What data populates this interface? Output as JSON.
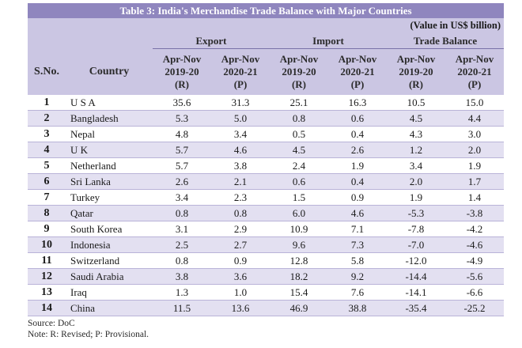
{
  "title": "Table 3: India's Merchandise Trade Balance with Major Countries",
  "units": "(Value in US$ billion)",
  "headers": {
    "sno": "S.No.",
    "country": "Country",
    "groups": [
      "Export",
      "Import",
      "Trade Balance"
    ],
    "columns": [
      {
        "line1": "Apr-Nov",
        "line2": "2019-20",
        "line3": "(R)"
      },
      {
        "line1": "Apr-Nov",
        "line2": "2020-21",
        "line3": "(P)"
      },
      {
        "line1": "Apr-Nov",
        "line2": "2019-20",
        "line3": "(R)"
      },
      {
        "line1": "Apr-Nov",
        "line2": "2020-21",
        "line3": "(P)"
      },
      {
        "line1": "Apr-Nov",
        "line2": "2019-20",
        "line3": "(R)"
      },
      {
        "line1": "Apr-Nov",
        "line2": "2020-21",
        "line3": "(P)"
      }
    ]
  },
  "rows": [
    {
      "sno": "1",
      "country": "U S A",
      "values": [
        "35.6",
        "31.3",
        "25.1",
        "16.3",
        "10.5",
        "15.0"
      ]
    },
    {
      "sno": "2",
      "country": "Bangladesh",
      "values": [
        "5.3",
        "5.0",
        "0.8",
        "0.6",
        "4.5",
        "4.4"
      ]
    },
    {
      "sno": "3",
      "country": "Nepal",
      "values": [
        "4.8",
        "3.4",
        "0.5",
        "0.4",
        "4.3",
        "3.0"
      ]
    },
    {
      "sno": "4",
      "country": "U K",
      "values": [
        "5.7",
        "4.6",
        "4.5",
        "2.6",
        "1.2",
        "2.0"
      ]
    },
    {
      "sno": "5",
      "country": "Netherland",
      "values": [
        "5.7",
        "3.8",
        "2.4",
        "1.9",
        "3.4",
        "1.9"
      ]
    },
    {
      "sno": "6",
      "country": "Sri Lanka",
      "values": [
        "2.6",
        "2.1",
        "0.6",
        "0.4",
        "2.0",
        "1.7"
      ]
    },
    {
      "sno": "7",
      "country": "Turkey",
      "values": [
        "3.4",
        "2.3",
        "1.5",
        "0.9",
        "1.9",
        "1.4"
      ]
    },
    {
      "sno": "8",
      "country": "Qatar",
      "values": [
        "0.8",
        "0.8",
        "6.0",
        "4.6",
        "-5.3",
        "-3.8"
      ]
    },
    {
      "sno": "9",
      "country": "South Korea",
      "values": [
        "3.1",
        "2.9",
        "10.9",
        "7.1",
        "-7.8",
        "-4.2"
      ]
    },
    {
      "sno": "10",
      "country": "Indonesia",
      "values": [
        "2.5",
        "2.7",
        "9.6",
        "7.3",
        "-7.0",
        "-4.6"
      ]
    },
    {
      "sno": "11",
      "country": "Switzerland",
      "values": [
        "0.8",
        "0.9",
        "12.8",
        "5.8",
        "-12.0",
        "-4.9"
      ]
    },
    {
      "sno": "12",
      "country": "Saudi Arabia",
      "values": [
        "3.8",
        "3.6",
        "18.2",
        "9.2",
        "-14.4",
        "-5.6"
      ]
    },
    {
      "sno": "13",
      "country": "Iraq",
      "values": [
        "1.3",
        "1.0",
        "15.4",
        "7.6",
        "-14.1",
        "-6.6"
      ]
    },
    {
      "sno": "14",
      "country": "China",
      "values": [
        "11.5",
        "13.6",
        "46.9",
        "38.8",
        "-35.4",
        "-25.2"
      ]
    }
  ],
  "source": "Source: DoC",
  "note": "Note: R: Revised; P: Provisional."
}
